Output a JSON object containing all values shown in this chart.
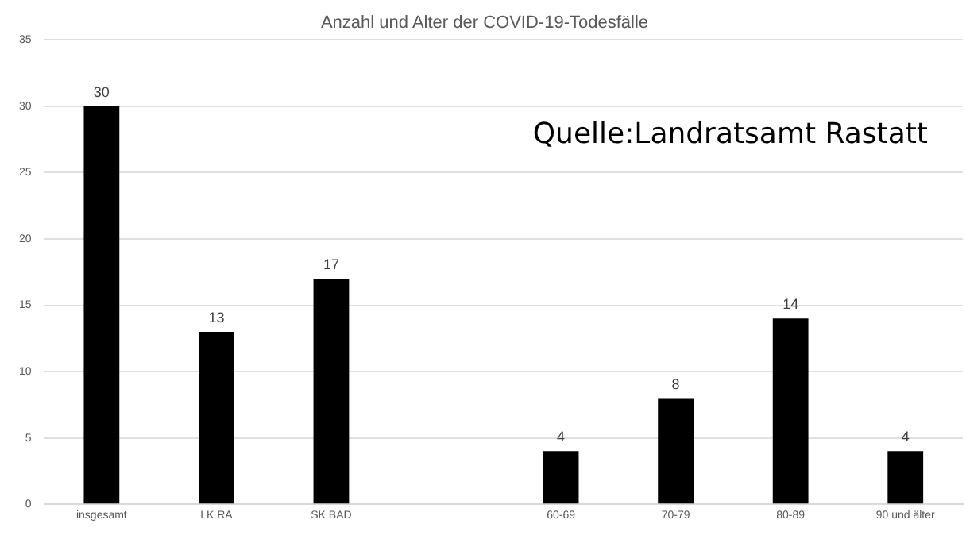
{
  "chart_data": {
    "type": "bar",
    "title": "Anzahl und Alter der COVID-19-Todesfälle",
    "categories": [
      "insgesamt",
      "LK RA",
      "SK BAD",
      null,
      "60-69",
      "70-79",
      "80-89",
      "90 und älter"
    ],
    "values": [
      30,
      13,
      17,
      null,
      4,
      8,
      14,
      4
    ],
    "color": "#000000",
    "ylim": [
      0,
      35
    ],
    "yticks": [
      0,
      5,
      10,
      15,
      20,
      25,
      30,
      35
    ],
    "grid": "y",
    "data_labels": true,
    "legend": false,
    "annotations": [
      "Quelle:Landratsamt Rastatt"
    ]
  }
}
